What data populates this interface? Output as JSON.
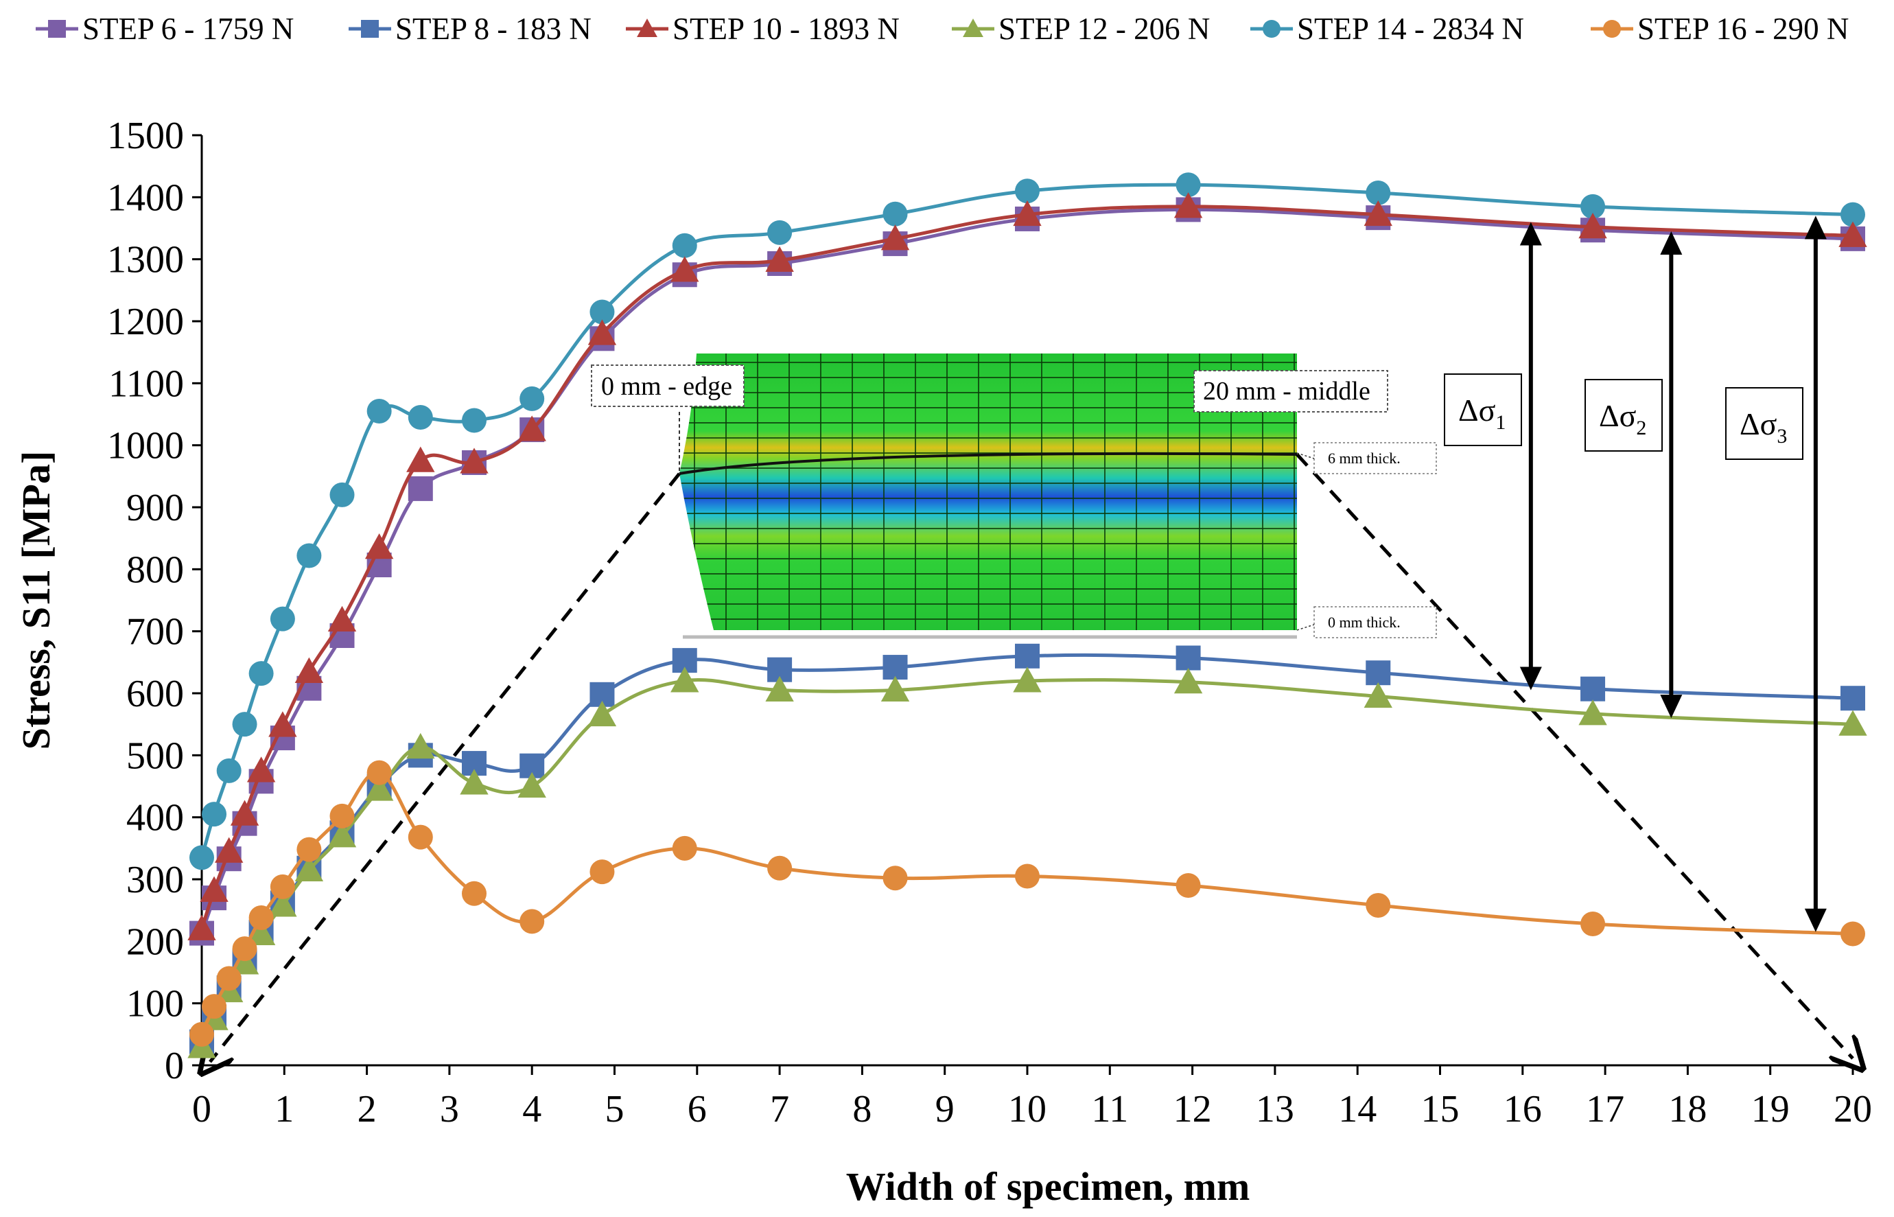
{
  "chart_data": {
    "type": "line",
    "title": "",
    "xlabel": "Width of specimen, mm",
    "ylabel": "Stress, S11 [MPa]",
    "xlim": [
      0,
      20
    ],
    "ylim": [
      0,
      1500
    ],
    "xticks": [
      "0",
      "1",
      "2",
      "3",
      "4",
      "5",
      "6",
      "7",
      "8",
      "9",
      "10",
      "11",
      "12",
      "13",
      "14",
      "15",
      "16",
      "17",
      "18",
      "19",
      "20"
    ],
    "yticks": [
      "0",
      "100",
      "200",
      "300",
      "400",
      "500",
      "600",
      "700",
      "800",
      "900",
      "1000",
      "1100",
      "1200",
      "1300",
      "1400",
      "1500"
    ],
    "legend_position": "top",
    "series": [
      {
        "name": "STEP 6 - 1759 N",
        "color": "#7b5ea7",
        "marker": "square",
        "x": [
          0,
          0.15,
          0.33,
          0.52,
          0.72,
          0.98,
          1.3,
          1.7,
          2.15,
          2.65,
          3.3,
          4.0,
          4.85,
          5.85,
          7.0,
          8.4,
          10.0,
          11.95,
          14.25,
          16.85,
          20.0
        ],
        "y": [
          213,
          270,
          333,
          390,
          458,
          528,
          608,
          693,
          807,
          930,
          972,
          1025,
          1172,
          1275,
          1293,
          1325,
          1365,
          1380,
          1367,
          1347,
          1333
        ]
      },
      {
        "name": "STEP 8 - 183 N",
        "color": "#4a72b0",
        "marker": "square",
        "x": [
          0,
          0.15,
          0.33,
          0.52,
          0.72,
          0.98,
          1.3,
          1.7,
          2.15,
          2.65,
          3.3,
          4.0,
          4.85,
          5.85,
          7.0,
          8.4,
          10.0,
          11.95,
          14.25,
          16.85,
          20.0
        ],
        "y": [
          38,
          78,
          125,
          168,
          215,
          262,
          318,
          375,
          450,
          500,
          487,
          483,
          598,
          653,
          638,
          642,
          660,
          657,
          633,
          607,
          592
        ]
      },
      {
        "name": "STEP 10 - 1893 N",
        "color": "#b03e3a",
        "marker": "triangle",
        "x": [
          0,
          0.15,
          0.33,
          0.52,
          0.72,
          0.98,
          1.3,
          1.7,
          2.15,
          2.65,
          3.3,
          4.0,
          4.85,
          5.85,
          7.0,
          8.4,
          10.0,
          11.95,
          14.25,
          16.85,
          20.0
        ],
        "y": [
          220,
          282,
          345,
          405,
          475,
          548,
          635,
          718,
          835,
          975,
          973,
          1025,
          1180,
          1282,
          1298,
          1333,
          1372,
          1385,
          1372,
          1352,
          1338
        ]
      },
      {
        "name": "STEP 12 - 206 N",
        "color": "#8faa4c",
        "marker": "triangle",
        "x": [
          0,
          0.15,
          0.33,
          0.52,
          0.72,
          0.98,
          1.3,
          1.7,
          2.15,
          2.65,
          3.3,
          4.0,
          4.85,
          5.85,
          7.0,
          8.4,
          10.0,
          11.95,
          14.25,
          16.85,
          20.0
        ],
        "y": [
          30,
          75,
          120,
          165,
          212,
          258,
          315,
          370,
          445,
          513,
          455,
          450,
          565,
          620,
          605,
          605,
          620,
          618,
          595,
          567,
          550
        ]
      },
      {
        "name": "STEP 14 - 2834 N",
        "color": "#3e96b4",
        "marker": "circle",
        "x": [
          0,
          0.15,
          0.33,
          0.52,
          0.72,
          0.98,
          1.3,
          1.7,
          2.15,
          2.65,
          3.3,
          4.0,
          4.85,
          5.85,
          7.0,
          8.4,
          10.0,
          11.95,
          14.25,
          16.85,
          20.0
        ],
        "y": [
          335,
          405,
          475,
          550,
          632,
          720,
          822,
          920,
          1055,
          1045,
          1040,
          1075,
          1215,
          1322,
          1343,
          1373,
          1410,
          1420,
          1407,
          1385,
          1372
        ]
      },
      {
        "name": "STEP 16 - 290 N",
        "color": "#e08a3c",
        "marker": "circle",
        "x": [
          0,
          0.15,
          0.33,
          0.52,
          0.72,
          0.98,
          1.3,
          1.7,
          2.15,
          2.65,
          3.3,
          4.0,
          4.85,
          5.85,
          7.0,
          8.4,
          10.0,
          11.95,
          14.25,
          16.85,
          20.0
        ],
        "y": [
          50,
          95,
          140,
          188,
          238,
          288,
          348,
          402,
          472,
          368,
          277,
          232,
          312,
          350,
          318,
          302,
          305,
          290,
          258,
          228,
          212
        ]
      }
    ],
    "annotations": {
      "edge_label": "0 mm - edge",
      "middle_label": "20 mm - middle",
      "thick_top": "6 mm thick.",
      "thick_bottom": "0 mm thick.",
      "deltas": [
        {
          "label": "Δσ",
          "sub": "1",
          "x": 16.1,
          "y_top": 1360,
          "y_bottom": 605
        },
        {
          "label": "Δσ",
          "sub": "2",
          "x": 17.8,
          "y_top": 1345,
          "y_bottom": 560
        },
        {
          "label": "Δσ",
          "sub": "3",
          "x": 19.55,
          "y_top": 1370,
          "y_bottom": 215
        }
      ]
    }
  }
}
